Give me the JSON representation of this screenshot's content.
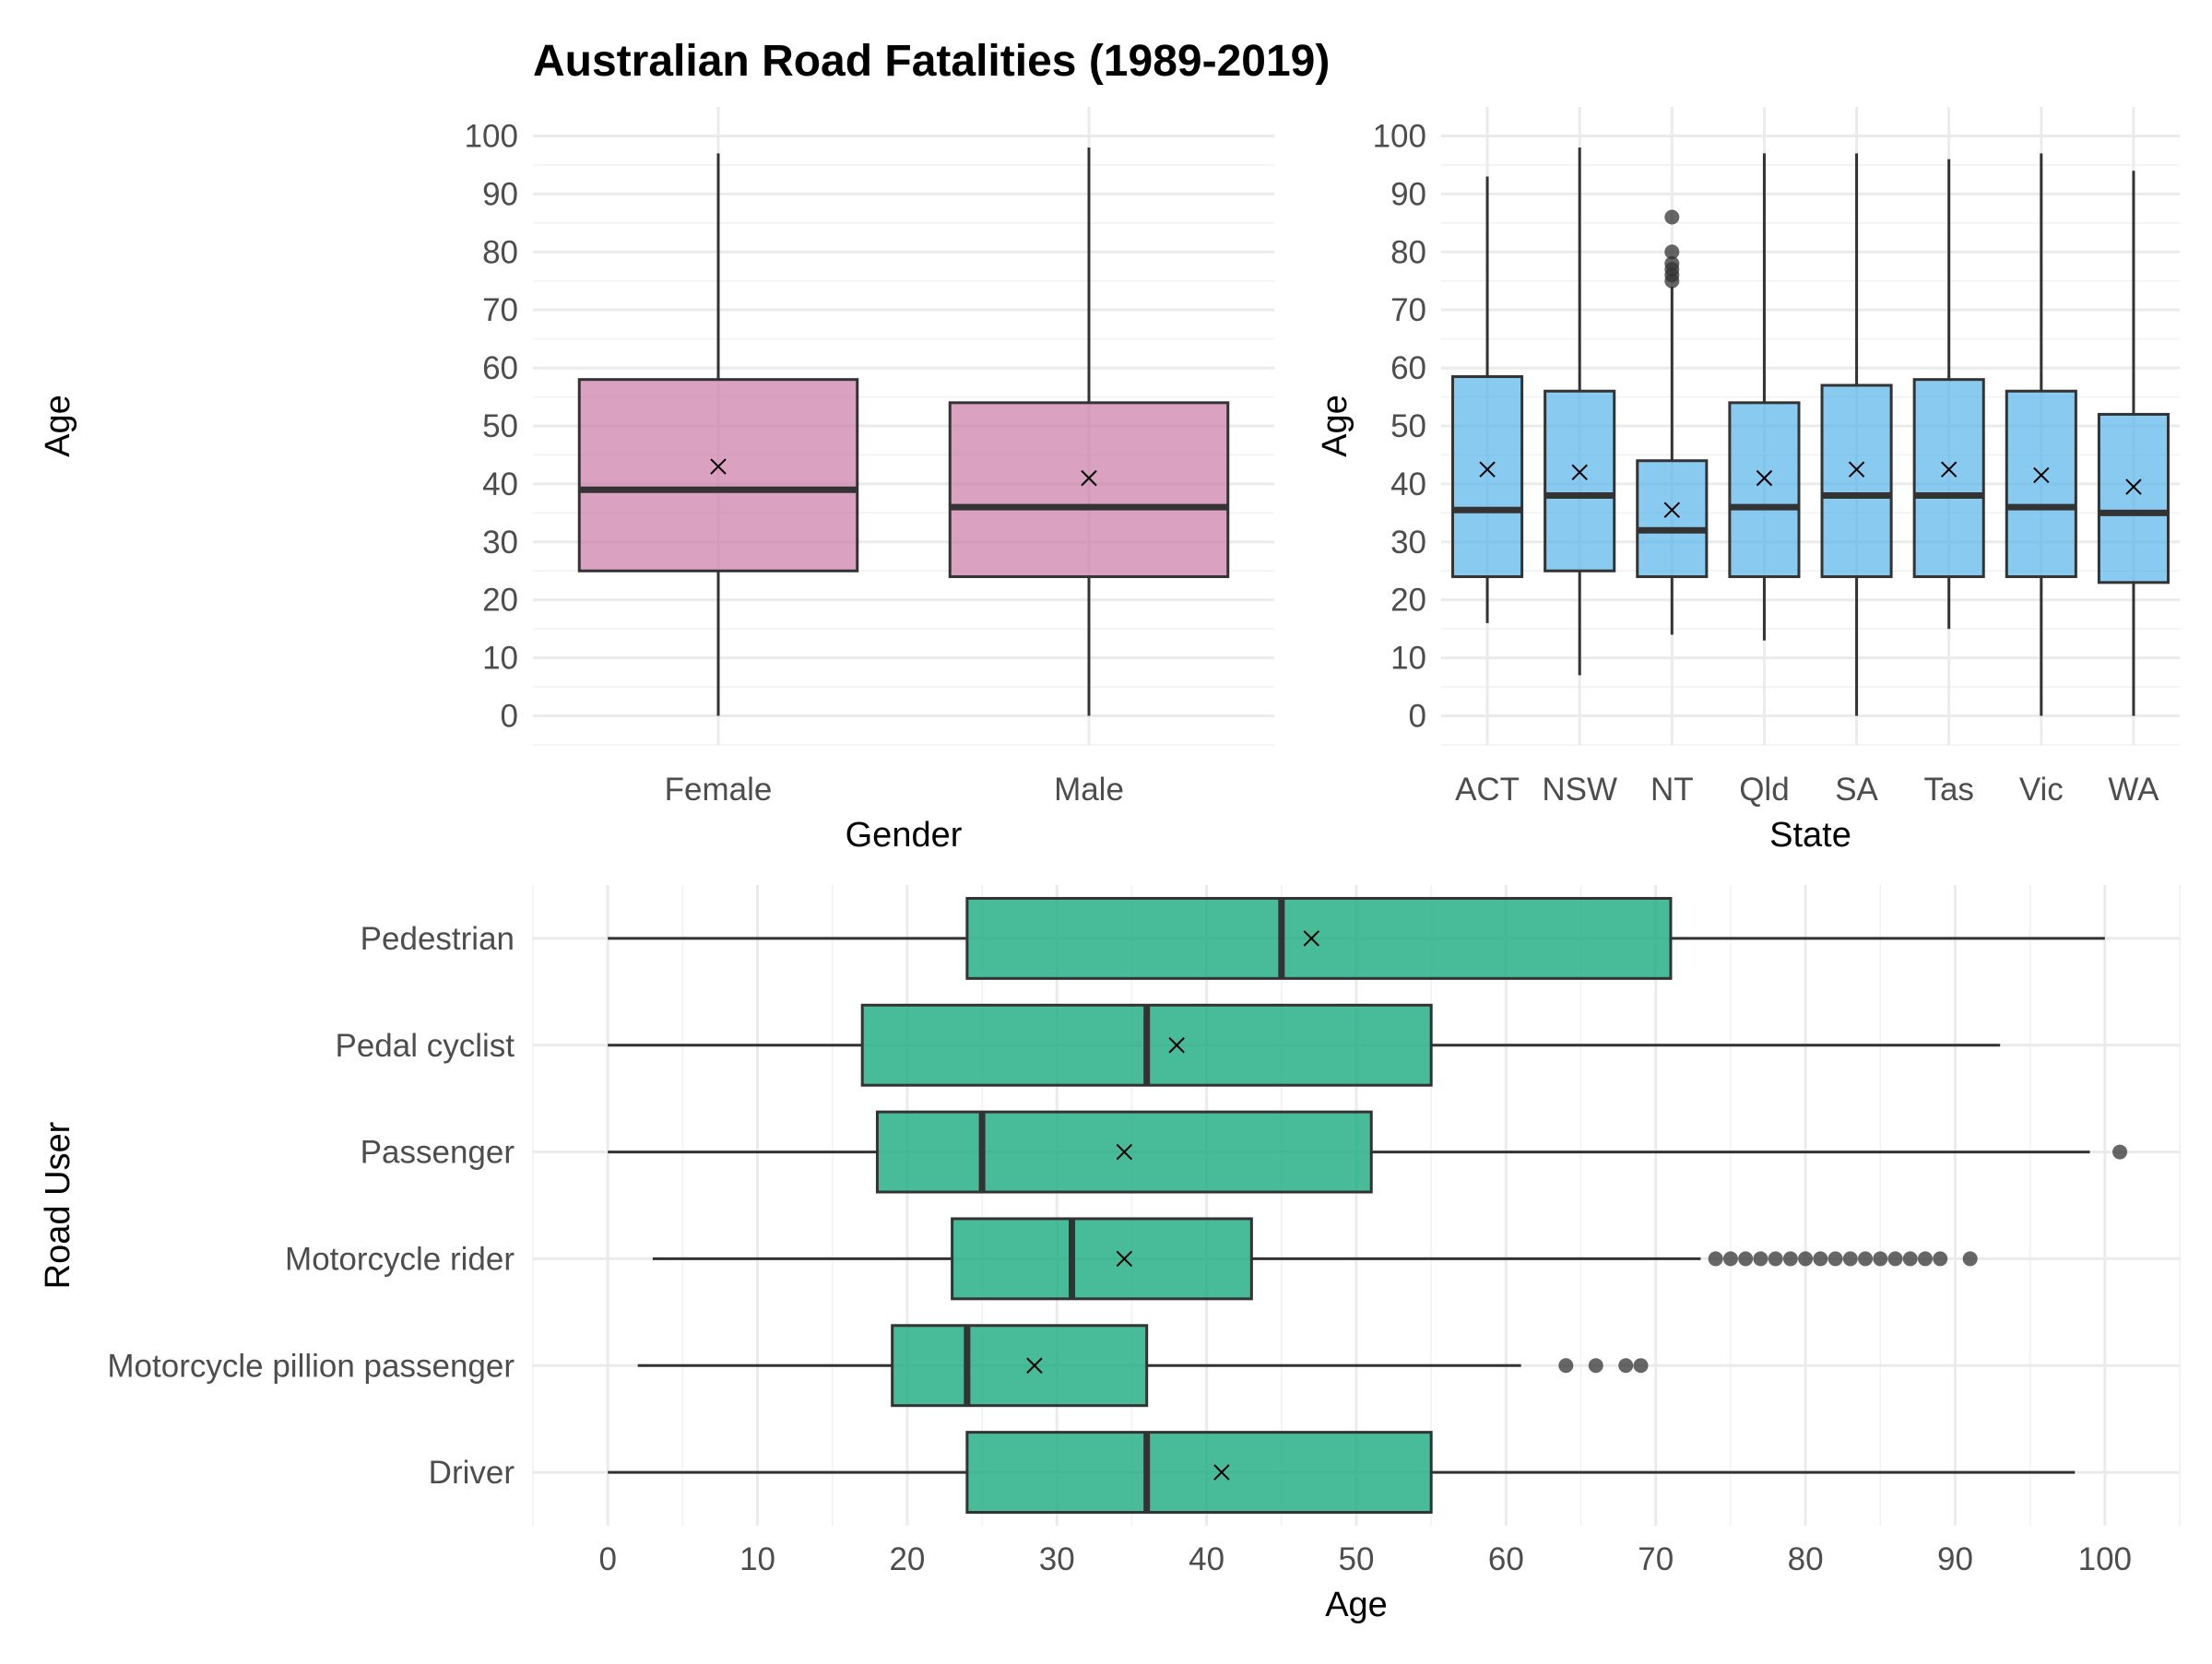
{
  "chart_data": [
    {
      "id": "gender",
      "type": "boxplot",
      "title": "Australian Road Fatalities (1989-2019)",
      "xlabel": "Gender",
      "ylabel": "Age",
      "ylim": [
        -5,
        105
      ],
      "yticks": [
        0,
        10,
        20,
        30,
        40,
        50,
        60,
        70,
        80,
        90,
        100
      ],
      "fill": "#cc79a7",
      "categories": [
        "Female",
        "Male"
      ],
      "boxes": [
        {
          "category": "Female",
          "min": 0,
          "q1": 25,
          "median": 39,
          "q3": 58,
          "max": 97,
          "mean": 43,
          "outliers": []
        },
        {
          "category": "Male",
          "min": 0,
          "q1": 24,
          "median": 36,
          "q3": 54,
          "max": 98,
          "mean": 41,
          "outliers": []
        }
      ]
    },
    {
      "id": "state",
      "type": "boxplot",
      "title": "",
      "xlabel": "State",
      "ylabel": "Age",
      "ylim": [
        -5,
        105
      ],
      "yticks": [
        0,
        10,
        20,
        30,
        40,
        50,
        60,
        70,
        80,
        90,
        100
      ],
      "fill": "#56b4e9",
      "categories": [
        "ACT",
        "NSW",
        "NT",
        "Qld",
        "SA",
        "Tas",
        "Vic",
        "WA"
      ],
      "boxes": [
        {
          "category": "ACT",
          "min": 16,
          "q1": 24,
          "median": 35.5,
          "q3": 58.5,
          "max": 93,
          "mean": 42.5,
          "outliers": []
        },
        {
          "category": "NSW",
          "min": 7,
          "q1": 25,
          "median": 38,
          "q3": 56,
          "max": 98,
          "mean": 42,
          "outliers": []
        },
        {
          "category": "NT",
          "min": 14,
          "q1": 24,
          "median": 32,
          "q3": 44,
          "max": 74,
          "mean": 35.5,
          "outliers": [
            75,
            76,
            77,
            78,
            80,
            86
          ]
        },
        {
          "category": "Qld",
          "min": 13,
          "q1": 24,
          "median": 36,
          "q3": 54,
          "max": 97,
          "mean": 41,
          "outliers": []
        },
        {
          "category": "SA",
          "min": 0,
          "q1": 24,
          "median": 38,
          "q3": 57,
          "max": 97,
          "mean": 42.5,
          "outliers": []
        },
        {
          "category": "Tas",
          "min": 15,
          "q1": 24,
          "median": 38,
          "q3": 58,
          "max": 96,
          "mean": 42.5,
          "outliers": []
        },
        {
          "category": "Vic",
          "min": 0,
          "q1": 24,
          "median": 36,
          "q3": 56,
          "max": 97,
          "mean": 41.5,
          "outliers": []
        },
        {
          "category": "WA",
          "min": 0,
          "q1": 23,
          "median": 35,
          "q3": 52,
          "max": 94,
          "mean": 39.5,
          "outliers": []
        }
      ]
    },
    {
      "id": "roaduser",
      "type": "boxplot",
      "orientation": "horizontal",
      "title": "",
      "xlabel": "Age",
      "ylabel": "Road User",
      "xlim": [
        -5,
        105
      ],
      "xticks": [
        0,
        10,
        20,
        30,
        40,
        50,
        60,
        70,
        80,
        90,
        100
      ],
      "fill": "#1aaa80",
      "categories": [
        "Pedestrian",
        "Pedal cyclist",
        "Passenger",
        "Motorcycle rider",
        "Motorcycle pillion passenger",
        "Driver"
      ],
      "boxes": [
        {
          "category": "Pedestrian",
          "min": 0,
          "q1": 24,
          "median": 45,
          "q3": 71,
          "max": 100,
          "mean": 47,
          "outliers": []
        },
        {
          "category": "Pedal cyclist",
          "min": 0,
          "q1": 17,
          "median": 36,
          "q3": 55,
          "max": 93,
          "mean": 38,
          "outliers": []
        },
        {
          "category": "Passenger",
          "min": 0,
          "q1": 18,
          "median": 25,
          "q3": 51,
          "max": 99,
          "mean": 34.5,
          "outliers": [
            101
          ]
        },
        {
          "category": "Motorcycle rider",
          "min": 3,
          "q1": 23,
          "median": 31,
          "q3": 43,
          "max": 73,
          "mean": 34.5,
          "outliers": [
            74,
            75,
            76,
            77,
            78,
            79,
            80,
            81,
            82,
            83,
            84,
            85,
            86,
            87,
            88,
            89,
            91
          ]
        },
        {
          "category": "Motorcycle pillion passenger",
          "min": 2,
          "q1": 19,
          "median": 24,
          "q3": 36,
          "max": 61,
          "mean": 28.5,
          "outliers": [
            64,
            66,
            68,
            69
          ]
        },
        {
          "category": "Driver",
          "min": 0,
          "q1": 24,
          "median": 36,
          "q3": 55,
          "max": 98,
          "mean": 41,
          "outliers": []
        }
      ]
    }
  ]
}
